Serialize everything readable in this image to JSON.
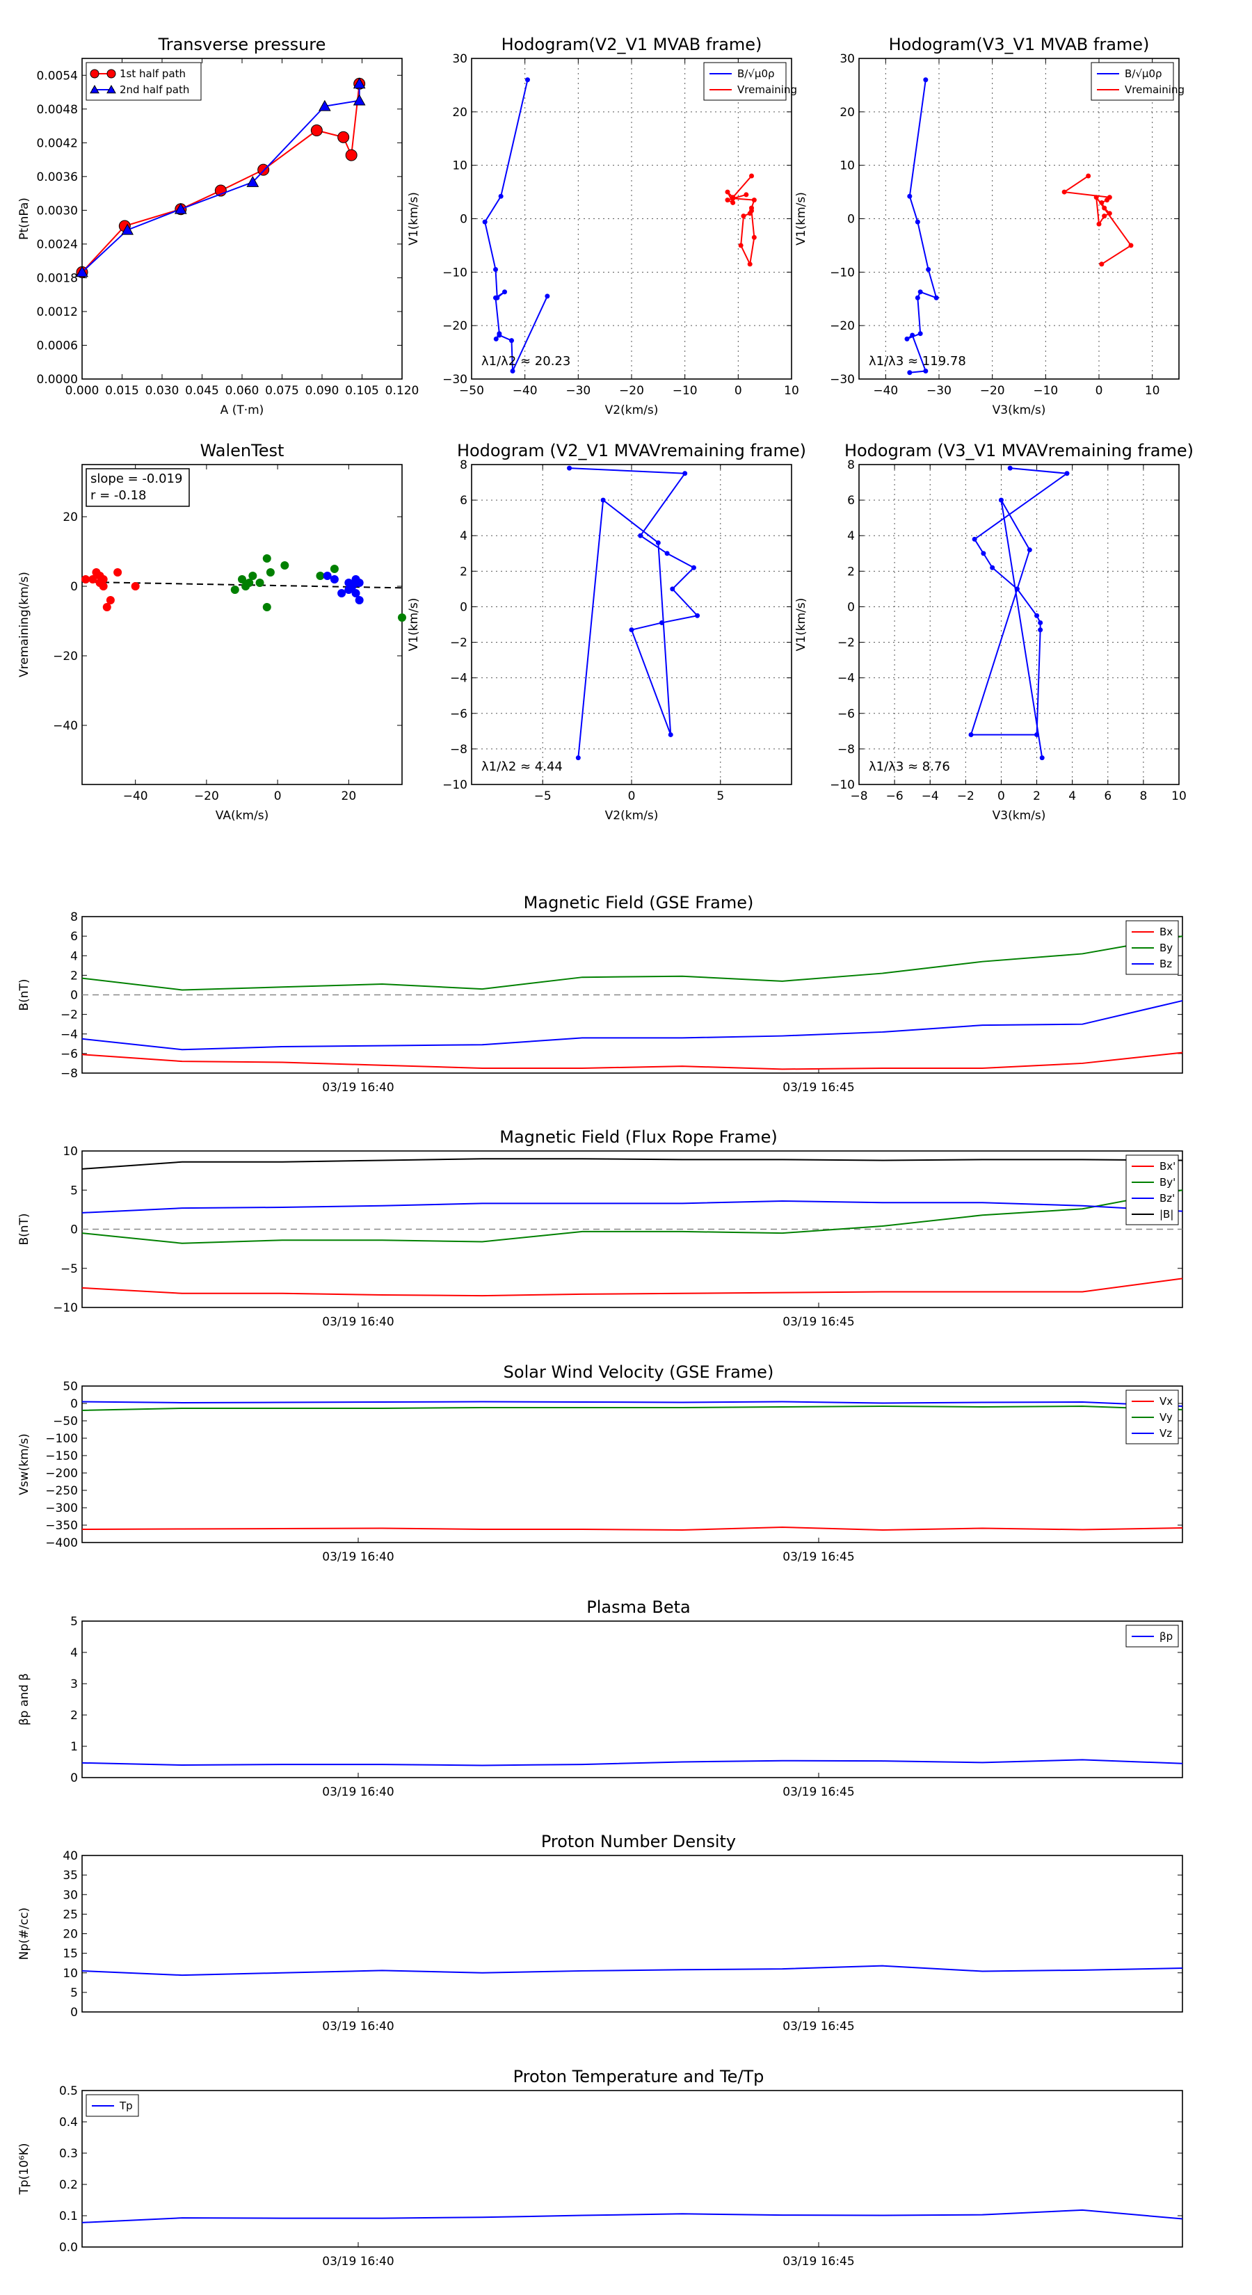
{
  "chart_data": [
    {
      "id": "tp",
      "type": "line",
      "title": "Transverse pressure",
      "xlabel": "A (T·m)",
      "ylabel": "Pt(nPa)",
      "xlim": [
        0,
        0.12
      ],
      "ylim": [
        0,
        0.0057
      ],
      "xticks": [
        "0.000",
        "0.015",
        "0.030",
        "0.045",
        "0.060",
        "0.075",
        "0.090",
        "0.105",
        "0.120"
      ],
      "yticks": [
        "0.0000",
        "0.0006",
        "0.0012",
        "0.0018",
        "0.0024",
        "0.0030",
        "0.0036",
        "0.0042",
        "0.0048",
        "0.0054"
      ],
      "legend": "top-left",
      "series": [
        {
          "name": "1st half path",
          "color": "#ff0000",
          "marker": "circle",
          "x": [
            0.104,
            0.101,
            0.098,
            0.088,
            0.068,
            0.052,
            0.037,
            0.016,
            0.0
          ],
          "y": [
            0.00525,
            0.00398,
            0.0043,
            0.00442,
            0.00372,
            0.00335,
            0.00302,
            0.00272,
            0.0019
          ]
        },
        {
          "name": "2nd half path",
          "color": "#0000ff",
          "marker": "triangle",
          "x": [
            0.0,
            0.017,
            0.037,
            0.064,
            0.091,
            0.104,
            0.104
          ],
          "y": [
            0.0019,
            0.00265,
            0.00302,
            0.0035,
            0.00485,
            0.00495,
            0.00525
          ]
        }
      ]
    },
    {
      "id": "h12",
      "type": "line",
      "title": "Hodogram(V2_V1 MVAB frame)",
      "xlabel": "V2(km/s)",
      "ylabel": "V1(km/s)",
      "xlim": [
        -50,
        10
      ],
      "ylim": [
        -30,
        30
      ],
      "xticks": [
        "−50",
        "−40",
        "−30",
        "−20",
        "−10",
        "0",
        "10"
      ],
      "yticks": [
        "−30",
        "−20",
        "−10",
        "0",
        "10",
        "20",
        "30"
      ],
      "annotation": "λ1/λ2 ≈ 20.23",
      "legend": "top-right",
      "series": [
        {
          "name": "B/√μ0ρ",
          "color": "#0000ff",
          "x": [
            -39.5,
            -44.5,
            -47.5,
            -45.5,
            -45.2,
            -43.8,
            -45.5,
            -44.8,
            -45.4,
            -44.8,
            -42.5,
            -42.3,
            -35.8
          ],
          "y": [
            26.0,
            4.2,
            -0.6,
            -9.5,
            -14.8,
            -13.7,
            -14.8,
            -21.5,
            -22.5,
            -21.8,
            -22.8,
            -28.5,
            -14.5
          ]
        },
        {
          "name": "Vremaining",
          "color": "#ff0000",
          "x": [
            2.5,
            -1.0,
            -2.0,
            -1.0,
            -2.0,
            1.5,
            -1.0,
            3.0,
            2.5,
            2.2,
            1.0,
            0.5,
            2.2,
            3.0,
            2.5
          ],
          "y": [
            8.0,
            4.0,
            5.0,
            3.0,
            3.5,
            4.5,
            3.8,
            3.5,
            2.0,
            1.0,
            0.5,
            -5.0,
            -8.5,
            -3.5,
            1.5
          ]
        }
      ]
    },
    {
      "id": "h13",
      "type": "line",
      "title": "Hodogram(V3_V1 MVAB frame)",
      "xlabel": "V3(km/s)",
      "ylabel": "V1(km/s)",
      "xlim": [
        -45,
        15
      ],
      "ylim": [
        -30,
        30
      ],
      "xticks": [
        "−40",
        "−30",
        "−20",
        "−10",
        "0",
        "10"
      ],
      "yticks": [
        "−30",
        "−20",
        "−10",
        "0",
        "10",
        "20",
        "30"
      ],
      "annotation": "λ1/λ3 ≈ 119.78",
      "legend": "top-right",
      "series": [
        {
          "name": "B/√μ0ρ",
          "color": "#0000ff",
          "x": [
            -32.5,
            -35.5,
            -34.0,
            -32.0,
            -30.5,
            -33.5,
            -34.0,
            -33.5,
            -36.0,
            -35.0,
            -32.5,
            -35.5
          ],
          "y": [
            26.0,
            4.2,
            -0.6,
            -9.5,
            -14.8,
            -13.7,
            -14.8,
            -21.5,
            -22.5,
            -21.8,
            -28.5,
            -28.8
          ]
        },
        {
          "name": "Vremaining",
          "color": "#ff0000",
          "x": [
            -2.0,
            -6.5,
            2.0,
            1.5,
            0.5,
            1.0,
            2.0,
            1.0,
            0.0,
            -0.5,
            6.0,
            0.5
          ],
          "y": [
            8.0,
            5.0,
            4.0,
            3.5,
            3.0,
            2.0,
            1.0,
            0.5,
            -1.0,
            4.0,
            -5.0,
            -8.5
          ]
        }
      ]
    },
    {
      "id": "walen",
      "type": "scatter",
      "title": "WalenTest",
      "xlabel": "VA(km/s)",
      "ylabel": "Vremaining(km/s)",
      "xlim": [
        -55,
        35
      ],
      "ylim": [
        -57,
        35
      ],
      "xticks": [
        "−40",
        "−20",
        "0",
        "20"
      ],
      "yticks": [
        "20",
        "0",
        "−20",
        "−40"
      ],
      "annotation_lines": [
        "slope = -0.019",
        "r = -0.18"
      ],
      "fit": {
        "slope": -0.019,
        "intercept": 0.2
      },
      "series": [
        {
          "color": "#ff0000",
          "x": [
            -54,
            -52,
            -51,
            -50,
            -50,
            -49,
            -49,
            -48,
            -47,
            -45,
            -40
          ],
          "y": [
            2,
            2,
            4,
            1,
            3,
            0,
            2,
            -6,
            -4,
            4,
            0
          ]
        },
        {
          "color": "#008000",
          "x": [
            -12,
            -10,
            -9,
            -8,
            -7,
            -5,
            -3,
            -2,
            2,
            -3,
            12,
            16,
            35
          ],
          "y": [
            -1,
            2,
            0,
            1,
            3,
            1,
            8,
            4,
            6,
            -6,
            3,
            5,
            -9
          ]
        },
        {
          "color": "#0000ff",
          "x": [
            14,
            16,
            18,
            20,
            20,
            21,
            22,
            22,
            23,
            22,
            23
          ],
          "y": [
            3,
            2,
            -2,
            -1,
            1,
            0,
            -2,
            1,
            -4,
            2,
            1
          ]
        }
      ]
    },
    {
      "id": "h12r",
      "type": "line",
      "title": "Hodogram (V2_V1 MVAVremaining frame)",
      "xlabel": "V2(km/s)",
      "ylabel": "V1(km/s)",
      "xlim": [
        -9,
        9
      ],
      "ylim": [
        -10,
        8
      ],
      "xticks": [
        "−5",
        "0",
        "5"
      ],
      "yticks": [
        "−10",
        "−8",
        "−6",
        "−4",
        "−2",
        "0",
        "2",
        "4",
        "6",
        "8"
      ],
      "annotation": "λ1/λ2 ≈ 4.44",
      "series": [
        {
          "color": "#0000ff",
          "x": [
            -3.5,
            3.0,
            0.5,
            2.0,
            3.5,
            2.3,
            3.7,
            1.7,
            0.0,
            2.2,
            1.5,
            -1.6,
            -3.0
          ],
          "y": [
            7.8,
            7.5,
            4.0,
            3.0,
            2.2,
            1.0,
            -0.5,
            -0.9,
            -1.3,
            -7.2,
            3.6,
            6.0,
            -8.5
          ]
        }
      ]
    },
    {
      "id": "h13r",
      "type": "line",
      "title": "Hodogram (V3_V1 MVAVremaining frame)",
      "xlabel": "V3(km/s)",
      "ylabel": "V1(km/s)",
      "xlim": [
        -8,
        10
      ],
      "ylim": [
        -10,
        8
      ],
      "xticks": [
        "−8",
        "−6",
        "−4",
        "−2",
        "0",
        "2",
        "4",
        "6",
        "8",
        "10"
      ],
      "yticks": [
        "−10",
        "−8",
        "−6",
        "−4",
        "−2",
        "0",
        "2",
        "4",
        "6",
        "8"
      ],
      "annotation": "λ1/λ3 ≈ 8.76",
      "series": [
        {
          "color": "#0000ff",
          "x": [
            0.5,
            3.7,
            -1.5,
            -1.0,
            -0.5,
            0.9,
            2.0,
            2.2,
            2.2,
            2.0,
            -1.7,
            1.6,
            0.0,
            2.3
          ],
          "y": [
            7.8,
            7.5,
            3.8,
            3.0,
            2.2,
            1.0,
            -0.5,
            -0.9,
            -1.3,
            -7.2,
            -7.2,
            3.2,
            6.0,
            -8.5
          ]
        }
      ]
    },
    {
      "id": "bgse",
      "type": "line",
      "title": "Magnetic Field (GSE Frame)",
      "ylabel": "B(nT)",
      "ylim": [
        -8,
        8
      ],
      "yticks": [
        "8",
        "6",
        "4",
        "2",
        "0",
        "−2",
        "−4",
        "−6",
        "−8"
      ],
      "time_ticks": [
        "03/19 16:40",
        "03/19 16:45"
      ],
      "zero_line": true,
      "legend": "top-right",
      "series": [
        {
          "name": "Bx",
          "color": "#ff0000",
          "values": [
            -6.1,
            -6.8,
            -6.9,
            -7.2,
            -7.5,
            -7.5,
            -7.3,
            -7.6,
            -7.5,
            -7.5,
            -7.0,
            -5.9
          ]
        },
        {
          "name": "By",
          "color": "#008000",
          "values": [
            1.7,
            0.5,
            0.8,
            1.1,
            0.6,
            1.8,
            1.9,
            1.4,
            2.2,
            3.4,
            4.2,
            6.0
          ]
        },
        {
          "name": "Bz",
          "color": "#0000ff",
          "values": [
            -4.5,
            -5.6,
            -5.3,
            -5.2,
            -5.1,
            -4.4,
            -4.4,
            -4.2,
            -3.8,
            -3.1,
            -3.0,
            -0.6
          ]
        }
      ]
    },
    {
      "id": "bfr",
      "type": "line",
      "title": "Magnetic Field (Flux Rope Frame)",
      "ylabel": "B(nT)",
      "ylim": [
        -10,
        10
      ],
      "yticks": [
        "10",
        "5",
        "0",
        "−5",
        "−10"
      ],
      "time_ticks": [
        "03/19 16:40",
        "03/19 16:45"
      ],
      "zero_line": true,
      "legend": "top-right",
      "series": [
        {
          "name": "Bx'",
          "color": "#ff0000",
          "values": [
            -7.5,
            -8.2,
            -8.2,
            -8.4,
            -8.5,
            -8.3,
            -8.2,
            -8.1,
            -8.0,
            -8.0,
            -8.0,
            -6.3
          ]
        },
        {
          "name": "By'",
          "color": "#008000",
          "values": [
            -0.5,
            -1.8,
            -1.4,
            -1.4,
            -1.6,
            -0.3,
            -0.3,
            -0.5,
            0.4,
            1.8,
            2.6,
            5.0
          ]
        },
        {
          "name": "Bz'",
          "color": "#0000ff",
          "values": [
            2.1,
            2.7,
            2.8,
            3.0,
            3.3,
            3.3,
            3.3,
            3.6,
            3.4,
            3.4,
            3.0,
            2.3
          ]
        },
        {
          "name": "|B|",
          "color": "#000000",
          "values": [
            7.7,
            8.6,
            8.6,
            8.8,
            9.0,
            9.0,
            8.9,
            8.9,
            8.8,
            8.9,
            8.9,
            8.8
          ]
        }
      ]
    },
    {
      "id": "vsw",
      "type": "line",
      "title": "Solar Wind Velocity (GSE Frame)",
      "ylabel": "Vsw(km/s)",
      "ylim": [
        -400,
        50
      ],
      "yticks": [
        "50",
        "0",
        "−50",
        "−100",
        "−150",
        "−200",
        "−250",
        "−300",
        "−350",
        "−400"
      ],
      "time_ticks": [
        "03/19 16:40",
        "03/19 16:45"
      ],
      "legend": "top-right",
      "series": [
        {
          "name": "Vx",
          "color": "#ff0000",
          "values": [
            -362,
            -361,
            -360,
            -359,
            -362,
            -362,
            -364,
            -356,
            -364,
            -359,
            -363,
            -358
          ]
        },
        {
          "name": "Vy",
          "color": "#008000",
          "values": [
            -20,
            -14,
            -14,
            -14,
            -12,
            -12,
            -12,
            -10,
            -8,
            -10,
            -8,
            -18
          ]
        },
        {
          "name": "Vz",
          "color": "#0000ff",
          "values": [
            5,
            2,
            3,
            4,
            5,
            4,
            3,
            5,
            1,
            3,
            4,
            -8
          ]
        }
      ]
    },
    {
      "id": "beta",
      "type": "line",
      "title": "Plasma Beta",
      "ylabel": "βp and β",
      "ylim": [
        0,
        5
      ],
      "yticks": [
        "5",
        "4",
        "3",
        "2",
        "1",
        "0"
      ],
      "time_ticks": [
        "03/19 16:40",
        "03/19 16:45"
      ],
      "legend": "top-right",
      "series": [
        {
          "name": "βp",
          "color": "#0000ff",
          "values": [
            0.47,
            0.4,
            0.42,
            0.42,
            0.39,
            0.42,
            0.5,
            0.54,
            0.53,
            0.48,
            0.57,
            0.45
          ]
        }
      ]
    },
    {
      "id": "np",
      "type": "line",
      "title": "Proton Number Density",
      "ylabel": "Np(#/cc)",
      "ylim": [
        0,
        40
      ],
      "yticks": [
        "40",
        "35",
        "30",
        "25",
        "20",
        "15",
        "10",
        "5",
        "0"
      ],
      "time_ticks": [
        "03/19 16:40",
        "03/19 16:45"
      ],
      "series": [
        {
          "color": "#0000ff",
          "values": [
            10.5,
            9.4,
            10.0,
            10.6,
            10.0,
            10.5,
            10.8,
            11.0,
            11.8,
            10.4,
            10.7,
            11.2
          ]
        }
      ]
    },
    {
      "id": "tp2",
      "type": "line",
      "title": "Proton Temperature and Te/Tp",
      "ylabel": "Tp(10⁶K)",
      "ylim": [
        0,
        0.5
      ],
      "yticks": [
        "0.5",
        "0.4",
        "0.3",
        "0.2",
        "0.1",
        "0.0"
      ],
      "time_ticks": [
        "03/19 16:40",
        "03/19 16:45"
      ],
      "legend": "top-left",
      "series": [
        {
          "name": "Tp",
          "color": "#0000ff",
          "values": [
            0.078,
            0.093,
            0.092,
            0.092,
            0.095,
            0.101,
            0.106,
            0.102,
            0.101,
            0.103,
            0.118,
            0.09
          ]
        }
      ]
    }
  ]
}
